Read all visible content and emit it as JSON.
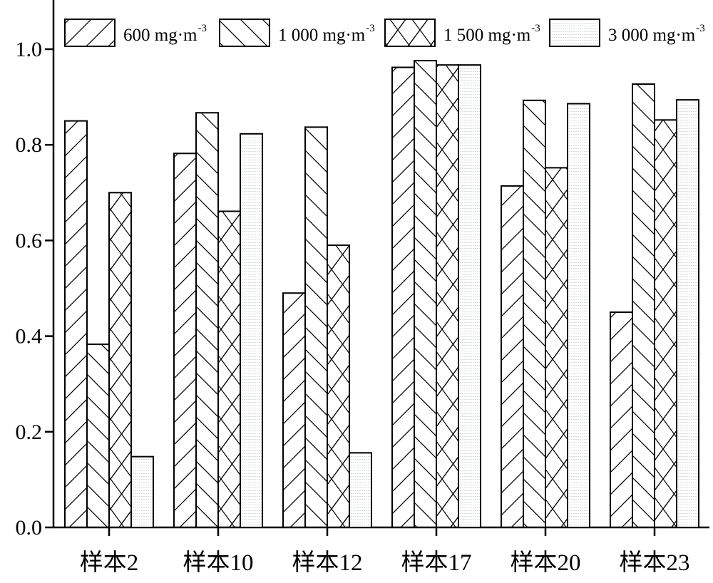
{
  "chart_data": {
    "type": "bar",
    "title": "",
    "xlabel": "",
    "ylabel": "",
    "ylim": [
      0,
      1.1
    ],
    "yticks": [
      "0.0",
      "0.2",
      "0.4",
      "0.6",
      "0.8",
      "1.0"
    ],
    "ytick_values": [
      0,
      0.2,
      0.4,
      0.6,
      0.8,
      1.0
    ],
    "grid": false,
    "legend_position": "top",
    "categories": [
      "样本2",
      "样本10",
      "样本12",
      "样本17",
      "样本20",
      "样本23"
    ],
    "series": [
      {
        "name": "600 mg·m",
        "sup": "-3",
        "pattern": "forward-hatch",
        "values": [
          0.85,
          0.782,
          0.49,
          0.962,
          0.714,
          0.45
        ]
      },
      {
        "name": "1 000 mg·m",
        "sup": "-3",
        "pattern": "back-hatch",
        "values": [
          0.383,
          0.867,
          0.837,
          0.976,
          0.893,
          0.927
        ]
      },
      {
        "name": "1 500 mg·m",
        "sup": "-3",
        "pattern": "cross-hatch",
        "values": [
          0.7,
          0.661,
          0.59,
          0.967,
          0.752,
          0.852
        ]
      },
      {
        "name": "3 000 mg·m",
        "sup": "-3",
        "pattern": "fine-dots",
        "values": [
          0.148,
          0.823,
          0.156,
          0.967,
          0.886,
          0.894
        ]
      }
    ]
  }
}
